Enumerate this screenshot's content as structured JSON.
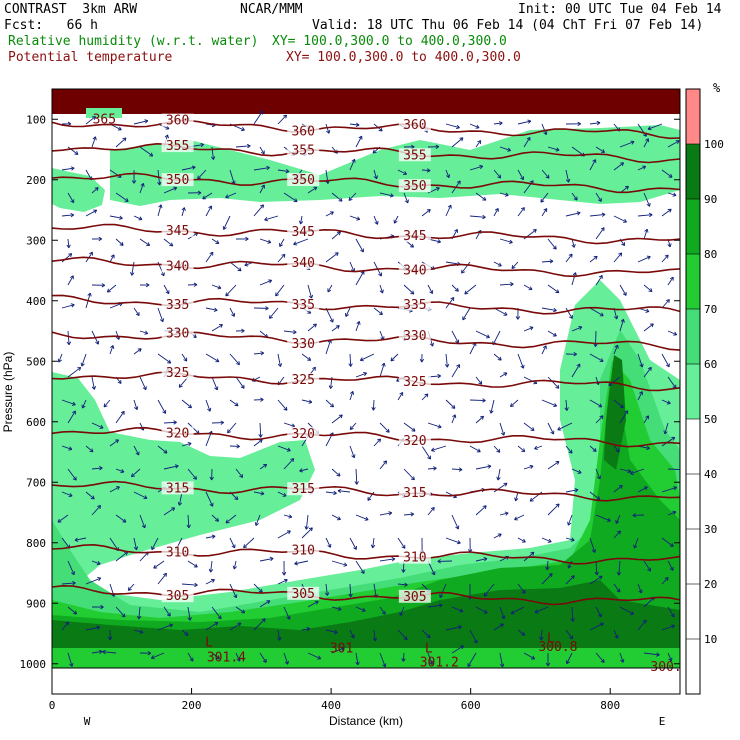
{
  "header": {
    "model": "CONTRAST  3km ARW",
    "org": "NCAR/MMM",
    "init": "Init: 00 UTC Tue 04 Feb 14",
    "fcst": "Fcst:   66 h",
    "valid": "Valid: 18 UTC Thu 06 Feb 14 (04 ChT Fri 07 Feb 14)",
    "field1": "Relative humidity (w.r.t. water)",
    "field1_xy": "XY= 100.0,300.0 to 400.0,300.0",
    "field2": "Potential temperature",
    "field2_xy": "XY= 100.0,300.0 to 400.0,300.0"
  },
  "colors": {
    "theta": "#7a0a0a",
    "vector": "#10207a",
    "rh_50_60": "#66ee99",
    "rh_60_70": "#44dd77",
    "rh_70_80": "#22cc33",
    "rh_80_90": "#10aa20",
    "rh_90_100": "#0a7a15",
    "rh_100_110": "#ff8888",
    "top_band": "#6e0000"
  },
  "chart_data": {
    "type": "contour",
    "xlabel": "Distance (km)",
    "ylabel": "Pressure (hPa)",
    "xlim": [
      0,
      900
    ],
    "ylim": [
      1050,
      50
    ],
    "xticks": [
      "0",
      "200",
      "400",
      "600",
      "800"
    ],
    "x_end_labels": [
      "W",
      "E"
    ],
    "yticks": [
      "100",
      "200",
      "300",
      "400",
      "500",
      "600",
      "700",
      "800",
      "900",
      "1000"
    ],
    "colorbar": {
      "unit": "%",
      "ticks": [
        "10",
        "20",
        "30",
        "40",
        "50",
        "60",
        "70",
        "80",
        "90",
        "100"
      ]
    },
    "theta_isentropes": [
      {
        "label": "360",
        "p": 115
      },
      {
        "label": "355",
        "p": 155
      },
      {
        "label": "350",
        "p": 205
      },
      {
        "label": "345",
        "p": 290
      },
      {
        "label": "340",
        "p": 345
      },
      {
        "label": "335",
        "p": 408
      },
      {
        "label": "330",
        "p": 465
      },
      {
        "label": "325",
        "p": 532
      },
      {
        "label": "320",
        "p": 625
      },
      {
        "label": "315",
        "p": 715
      },
      {
        "label": "310",
        "p": 820
      },
      {
        "label": "305",
        "p": 888
      }
    ],
    "annotations": [
      {
        "text": "365",
        "x": 75,
        "p": 100
      },
      {
        "text": "L",
        "x": 225,
        "p": 965
      },
      {
        "text": "301.4",
        "x": 250,
        "p": 990
      },
      {
        "text": "301",
        "x": 415,
        "p": 975
      },
      {
        "text": "L",
        "x": 540,
        "p": 975
      },
      {
        "text": "301.2",
        "x": 555,
        "p": 998
      },
      {
        "text": "300.8",
        "x": 725,
        "p": 972
      },
      {
        "text": "L",
        "x": 715,
        "p": 958
      },
      {
        "text": "300.",
        "x": 880,
        "p": 1005
      }
    ]
  }
}
